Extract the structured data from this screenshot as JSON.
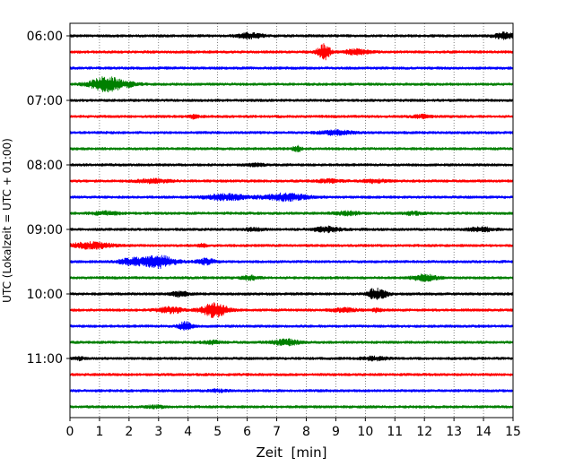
{
  "chart_data": {
    "type": "line",
    "title": "",
    "xlabel": "Zeit  [min]",
    "ylabel": "UTC (Lokalzeit = UTC + 01:00)",
    "xlim": [
      0,
      15
    ],
    "x_ticks": [
      "0",
      "1",
      "2",
      "3",
      "4",
      "5",
      "6",
      "7",
      "8",
      "9",
      "10",
      "11",
      "12",
      "13",
      "14",
      "15"
    ],
    "y_tick_labels": [
      "06:00",
      "07:00",
      "08:00",
      "09:00",
      "10:00",
      "11:00"
    ],
    "traces_per_hour": 4,
    "trace_minutes": 15,
    "grid": "vertical dotted",
    "colors": [
      "#000000",
      "#ff0000",
      "#0000ff",
      "#008000"
    ],
    "traces": [
      {
        "start": "06:00",
        "color": "#000000",
        "events": [
          [
            6.1,
            0.5,
            0.3
          ],
          [
            14.7,
            0.6,
            0.25
          ]
        ]
      },
      {
        "start": "06:15",
        "color": "#ff0000",
        "events": [
          [
            8.6,
            1.6,
            0.15
          ],
          [
            9.7,
            0.5,
            0.3
          ]
        ]
      },
      {
        "start": "06:30",
        "color": "#0000ff",
        "events": []
      },
      {
        "start": "06:45",
        "color": "#008000",
        "events": [
          [
            0.9,
            0.5,
            0.3
          ],
          [
            1.3,
            1.2,
            0.3
          ],
          [
            1.9,
            0.4,
            0.3
          ]
        ]
      },
      {
        "start": "07:00",
        "color": "#000000",
        "events": []
      },
      {
        "start": "07:15",
        "color": "#ff0000",
        "events": [
          [
            4.2,
            0.35,
            0.1
          ],
          [
            11.9,
            0.3,
            0.2
          ]
        ]
      },
      {
        "start": "07:30",
        "color": "#0000ff",
        "events": [
          [
            9.0,
            0.4,
            0.4
          ]
        ]
      },
      {
        "start": "07:45",
        "color": "#008000",
        "events": [
          [
            7.7,
            0.5,
            0.1
          ]
        ]
      },
      {
        "start": "08:00",
        "color": "#000000",
        "events": [
          [
            6.3,
            0.25,
            0.2
          ]
        ]
      },
      {
        "start": "08:15",
        "color": "#ff0000",
        "events": [
          [
            2.8,
            0.35,
            0.4
          ],
          [
            8.8,
            0.3,
            0.3
          ],
          [
            10.3,
            0.3,
            0.3
          ]
        ]
      },
      {
        "start": "08:30",
        "color": "#0000ff",
        "events": [
          [
            5.3,
            0.6,
            0.5
          ],
          [
            7.3,
            0.7,
            0.5
          ]
        ]
      },
      {
        "start": "08:45",
        "color": "#008000",
        "events": [
          [
            1.2,
            0.3,
            0.3
          ],
          [
            9.4,
            0.35,
            0.3
          ],
          [
            11.6,
            0.3,
            0.2
          ]
        ]
      },
      {
        "start": "09:00",
        "color": "#000000",
        "events": [
          [
            6.2,
            0.3,
            0.2
          ],
          [
            8.7,
            0.5,
            0.3
          ],
          [
            13.9,
            0.4,
            0.3
          ]
        ]
      },
      {
        "start": "09:15",
        "color": "#ff0000",
        "events": [
          [
            0.7,
            0.6,
            0.5
          ],
          [
            4.5,
            0.3,
            0.1
          ]
        ]
      },
      {
        "start": "09:30",
        "color": "#0000ff",
        "events": [
          [
            2.1,
            0.7,
            0.3
          ],
          [
            2.9,
            1.0,
            0.3
          ],
          [
            3.3,
            0.5,
            0.3
          ],
          [
            4.6,
            0.6,
            0.2
          ]
        ]
      },
      {
        "start": "09:45",
        "color": "#008000",
        "events": [
          [
            6.1,
            0.4,
            0.2
          ],
          [
            12.0,
            0.6,
            0.3
          ]
        ]
      },
      {
        "start": "10:00",
        "color": "#000000",
        "events": [
          [
            3.7,
            0.5,
            0.2
          ],
          [
            10.3,
            1.0,
            0.15
          ],
          [
            10.6,
            0.6,
            0.15
          ]
        ]
      },
      {
        "start": "10:15",
        "color": "#ff0000",
        "events": [
          [
            3.4,
            0.6,
            0.3
          ],
          [
            4.9,
            1.4,
            0.3
          ],
          [
            9.3,
            0.35,
            0.3
          ],
          [
            10.4,
            0.4,
            0.1
          ]
        ]
      },
      {
        "start": "10:30",
        "color": "#0000ff",
        "events": [
          [
            3.9,
            0.9,
            0.15
          ]
        ]
      },
      {
        "start": "10:45",
        "color": "#008000",
        "events": [
          [
            4.8,
            0.3,
            0.2
          ],
          [
            7.3,
            0.6,
            0.3
          ]
        ]
      },
      {
        "start": "11:00",
        "color": "#000000",
        "events": [
          [
            0.3,
            0.3,
            0.1
          ],
          [
            10.3,
            0.3,
            0.3
          ]
        ]
      },
      {
        "start": "11:15",
        "color": "#ff0000",
        "events": []
      },
      {
        "start": "11:30",
        "color": "#0000ff",
        "events": [
          [
            5.0,
            0.25,
            0.2
          ]
        ]
      },
      {
        "start": "11:45",
        "color": "#008000",
        "events": [
          [
            2.9,
            0.25,
            0.2
          ]
        ]
      }
    ]
  }
}
